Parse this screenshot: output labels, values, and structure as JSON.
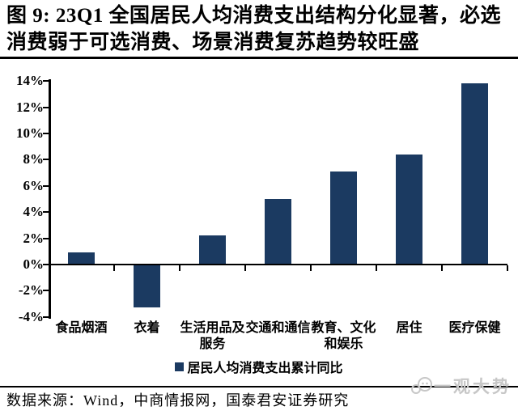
{
  "header": {
    "title": "图 9: 23Q1 全国居民人均消费支出结构分化显著，必选消费弱于可选消费、场景消费复苏趋势较旺盛"
  },
  "chart_data": {
    "type": "bar",
    "title": "23Q1 全国居民人均消费支出结构分化显著，必选消费弱于可选消费、场景消费复苏趋势较旺盛",
    "categories": [
      "食品烟酒",
      "衣着",
      "生活用品及\n服务",
      "交通和通信",
      "教育、文化\n和娱乐",
      "居住",
      "医疗保健"
    ],
    "values": [
      0.9,
      -3.3,
      2.2,
      5.0,
      7.1,
      8.4,
      13.8
    ],
    "series": [
      {
        "name": "居民人均消费支出累计同比",
        "values": [
          0.9,
          -3.3,
          2.2,
          5.0,
          7.1,
          8.4,
          13.8
        ]
      }
    ],
    "legend": [
      "居民人均消费支出累计同比"
    ],
    "legend_position": "bottom",
    "xlabel": "",
    "ylabel": "",
    "ylim": [
      -4,
      14
    ],
    "ytick_values": [
      14,
      12,
      10,
      8,
      6,
      4,
      2,
      0,
      -2,
      -4
    ],
    "yticks": [
      "14%",
      "12%",
      "10%",
      "8%",
      "6%",
      "4%",
      "2%",
      "0%",
      "-2%",
      "-4%"
    ],
    "grid": false,
    "bar_color": "#1b3a61",
    "axis_color": "#000000"
  },
  "footer": {
    "source": "数据来源：Wind，中商情报网，国泰君安证券研究",
    "watermark": "一观大势"
  }
}
